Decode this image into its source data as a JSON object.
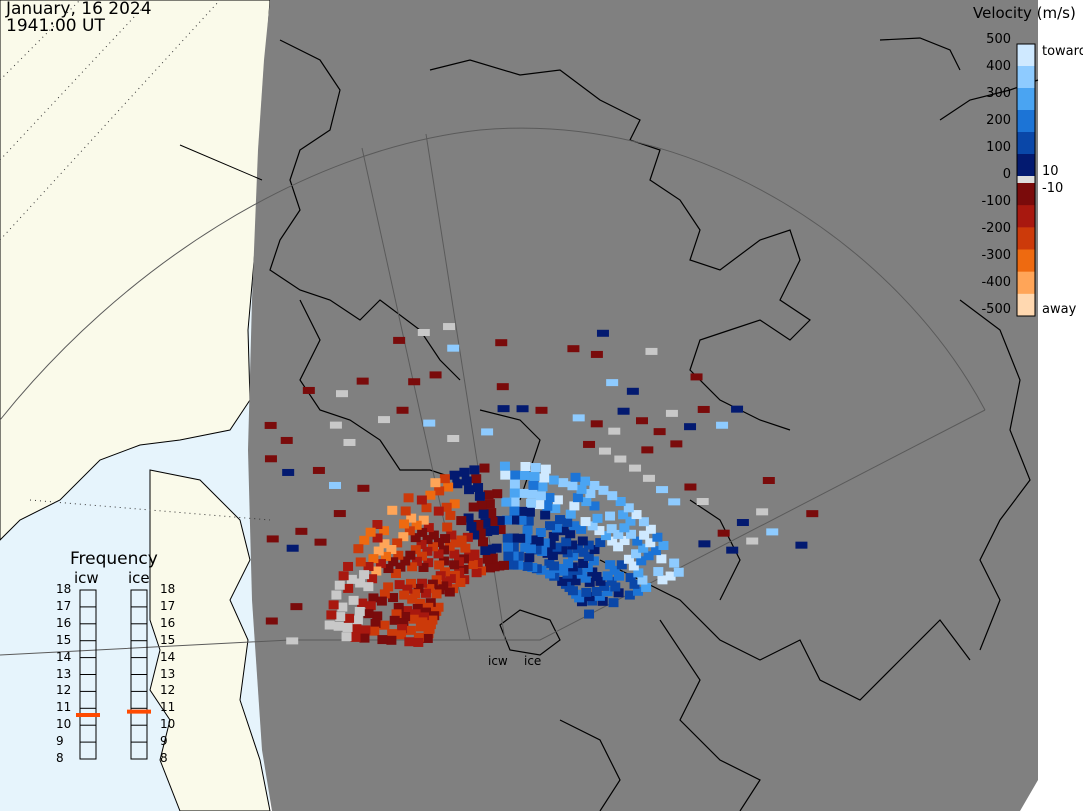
{
  "header": {
    "date": "January, 16 2024",
    "time": "1941:00 UT"
  },
  "velocity_scale": {
    "title": "Velocity (m/s)",
    "ticks": [
      "500",
      "400",
      "300",
      "200",
      "100",
      "0",
      "-100",
      "-200",
      "-300",
      "-400",
      "-500"
    ],
    "inner_ticks": [
      "10",
      "-10"
    ],
    "toward_label": "toward",
    "away_label": "away",
    "toward_colors": [
      "#cfe9ff",
      "#8ecbff",
      "#4aa4f2",
      "#1c74d6",
      "#0a47a8",
      "#031a70"
    ],
    "away_colors": [
      "#7a0b0b",
      "#a8180f",
      "#cc3a0a",
      "#ee6a10",
      "#ffa558",
      "#ffd8b0"
    ]
  },
  "frequency": {
    "title": "Frequency",
    "columns": [
      {
        "name": "icw",
        "value": 10.6
      },
      {
        "name": "ice",
        "value": 10.8
      }
    ],
    "ticks": [
      "18",
      "17",
      "16",
      "15",
      "14",
      "13",
      "12",
      "11",
      "10",
      "9",
      "8"
    ],
    "marker_color": "#ff4a00"
  },
  "sites": [
    {
      "name": "icw"
    },
    {
      "name": "ice"
    }
  ],
  "colors": {
    "night": "#808080",
    "day": "#fafaea",
    "ocean_day": "#e6f4fc",
    "coast": "#000000"
  }
}
